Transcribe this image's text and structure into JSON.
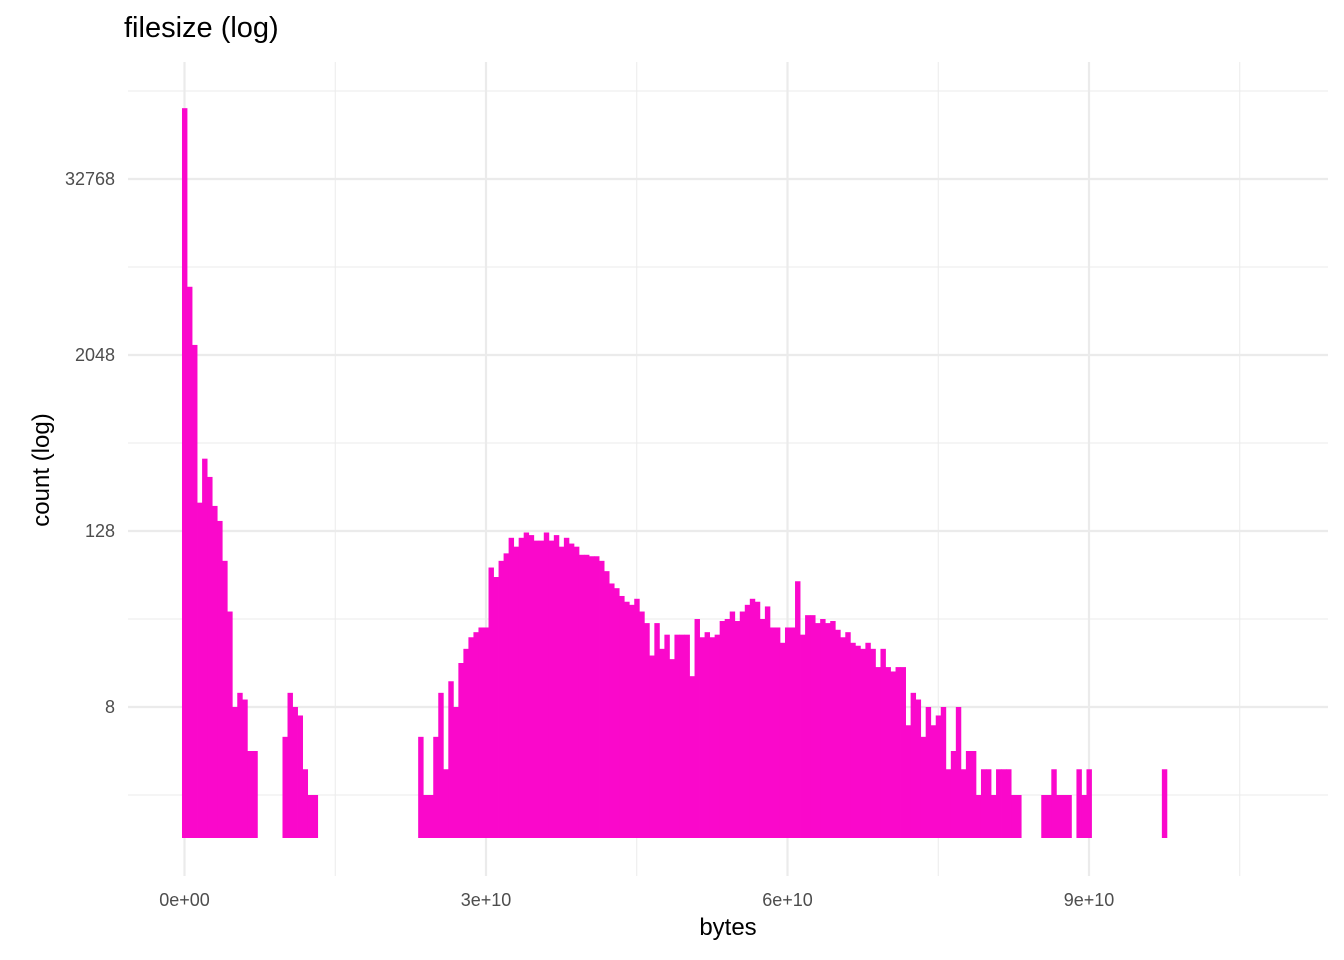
{
  "chart_data": {
    "type": "bar",
    "title": "filesize (log)",
    "xlabel": "bytes",
    "ylabel": "count (log)",
    "x_scale": "linear",
    "y_scale": "log2",
    "xlim": [
      -2500000000.0,
      110000000000.0
    ],
    "x_ticks": [
      0,
      30000000000,
      60000000000,
      90000000000
    ],
    "x_tick_labels": [
      "0e+00",
      "3e+10",
      "6e+10",
      "9e+10"
    ],
    "y_ticks": [
      8,
      128,
      2048,
      32768
    ],
    "y_tick_labels": [
      "8",
      "128",
      "2048",
      "32768"
    ],
    "bin_width": 500000000,
    "bar_color": "#FA08CB",
    "grid": true,
    "legend": "none",
    "bins": [
      [
        0,
        100000
      ],
      [
        500000000,
        6000
      ],
      [
        1000000000,
        2400
      ],
      [
        1500000000,
        200
      ],
      [
        2000000000,
        400
      ],
      [
        2500000000,
        300
      ],
      [
        3000000000,
        190
      ],
      [
        3500000000,
        150
      ],
      [
        4000000000,
        80
      ],
      [
        4500000000,
        36
      ],
      [
        5000000000,
        8
      ],
      [
        5500000000,
        10
      ],
      [
        6000000000,
        9
      ],
      [
        6500000000,
        4
      ],
      [
        7000000000,
        4
      ],
      [
        8000000000,
        0
      ],
      [
        9000000000,
        0
      ],
      [
        10000000000,
        5
      ],
      [
        10500000000,
        10
      ],
      [
        11000000000,
        8
      ],
      [
        11500000000,
        7
      ],
      [
        12000000000,
        3
      ],
      [
        12500000000,
        2
      ],
      [
        13000000000,
        2
      ],
      [
        23500000000,
        5
      ],
      [
        24000000000,
        2
      ],
      [
        24500000000,
        2
      ],
      [
        25000000000,
        5
      ],
      [
        25500000000,
        10
      ],
      [
        26000000000,
        3
      ],
      [
        26500000000,
        12
      ],
      [
        27000000000,
        8
      ],
      [
        27500000000,
        16
      ],
      [
        28000000000,
        20
      ],
      [
        28500000000,
        24
      ],
      [
        29000000000,
        26
      ],
      [
        29500000000,
        28
      ],
      [
        30000000000,
        28
      ],
      [
        30500000000,
        72
      ],
      [
        31000000000,
        62
      ],
      [
        31500000000,
        80
      ],
      [
        32000000000,
        90
      ],
      [
        32500000000,
        115
      ],
      [
        33000000000,
        100
      ],
      [
        33500000000,
        115
      ],
      [
        34000000000,
        125
      ],
      [
        34500000000,
        120
      ],
      [
        35000000000,
        110
      ],
      [
        35500000000,
        110
      ],
      [
        36000000000,
        125
      ],
      [
        36500000000,
        110
      ],
      [
        37000000000,
        120
      ],
      [
        37500000000,
        100
      ],
      [
        38000000000,
        115
      ],
      [
        38500000000,
        105
      ],
      [
        39000000000,
        100
      ],
      [
        39500000000,
        88
      ],
      [
        40000000000,
        88
      ],
      [
        40500000000,
        86
      ],
      [
        41000000000,
        86
      ],
      [
        41500000000,
        80
      ],
      [
        42000000000,
        68
      ],
      [
        42500000000,
        56
      ],
      [
        43000000000,
        52
      ],
      [
        43500000000,
        46
      ],
      [
        44000000000,
        42
      ],
      [
        44500000000,
        40
      ],
      [
        45000000000,
        44
      ],
      [
        45500000000,
        36
      ],
      [
        46000000000,
        30
      ],
      [
        46500000000,
        18
      ],
      [
        47000000000,
        30
      ],
      [
        47500000000,
        20
      ],
      [
        48000000000,
        25
      ],
      [
        48500000000,
        17
      ],
      [
        49000000000,
        25
      ],
      [
        49500000000,
        25
      ],
      [
        50000000000,
        25
      ],
      [
        50500000000,
        13
      ],
      [
        51000000000,
        32
      ],
      [
        51500000000,
        24
      ],
      [
        52000000000,
        26
      ],
      [
        52500000000,
        24
      ],
      [
        53000000000,
        25
      ],
      [
        53500000000,
        31
      ],
      [
        54000000000,
        32
      ],
      [
        54500000000,
        36
      ],
      [
        55000000000,
        31
      ],
      [
        55500000000,
        36
      ],
      [
        56000000000,
        40
      ],
      [
        56500000000,
        44
      ],
      [
        57000000000,
        42
      ],
      [
        57500000000,
        32
      ],
      [
        58000000000,
        39
      ],
      [
        58500000000,
        28
      ],
      [
        59000000000,
        28
      ],
      [
        59500000000,
        22
      ],
      [
        60000000000,
        28
      ],
      [
        60500000000,
        28
      ],
      [
        61000000000,
        58
      ],
      [
        61500000000,
        25
      ],
      [
        62000000000,
        34
      ],
      [
        62500000000,
        34
      ],
      [
        63000000000,
        30
      ],
      [
        63500000000,
        32
      ],
      [
        64000000000,
        30
      ],
      [
        64500000000,
        31
      ],
      [
        65000000000,
        27
      ],
      [
        65500000000,
        24
      ],
      [
        66000000000,
        26
      ],
      [
        66500000000,
        22
      ],
      [
        67000000000,
        21
      ],
      [
        67500000000,
        20
      ],
      [
        68000000000,
        22
      ],
      [
        68500000000,
        20
      ],
      [
        69000000000,
        15
      ],
      [
        69500000000,
        20
      ],
      [
        70000000000,
        15
      ],
      [
        70500000000,
        14
      ],
      [
        71000000000,
        15
      ],
      [
        71500000000,
        15
      ],
      [
        72000000000,
        6
      ],
      [
        72500000000,
        10
      ],
      [
        73000000000,
        9
      ],
      [
        73500000000,
        5
      ],
      [
        74000000000,
        8
      ],
      [
        74500000000,
        6
      ],
      [
        75000000000,
        7
      ],
      [
        75500000000,
        8
      ],
      [
        76000000000,
        3
      ],
      [
        76500000000,
        4
      ],
      [
        77000000000,
        8
      ],
      [
        77500000000,
        3
      ],
      [
        78000000000,
        4
      ],
      [
        78500000000,
        4
      ],
      [
        79000000000,
        2
      ],
      [
        79500000000,
        3
      ],
      [
        80000000000,
        3
      ],
      [
        80500000000,
        2
      ],
      [
        81000000000,
        3
      ],
      [
        81500000000,
        3
      ],
      [
        82000000000,
        3
      ],
      [
        82500000000,
        2
      ],
      [
        83000000000,
        2
      ],
      [
        85500000000,
        2
      ],
      [
        86000000000,
        2
      ],
      [
        86500000000,
        3
      ],
      [
        87000000000,
        2
      ],
      [
        87500000000,
        2
      ],
      [
        88000000000,
        2
      ],
      [
        89000000000,
        3
      ],
      [
        89500000000,
        2
      ],
      [
        90000000000,
        3
      ],
      [
        97500000000,
        3
      ]
    ]
  }
}
